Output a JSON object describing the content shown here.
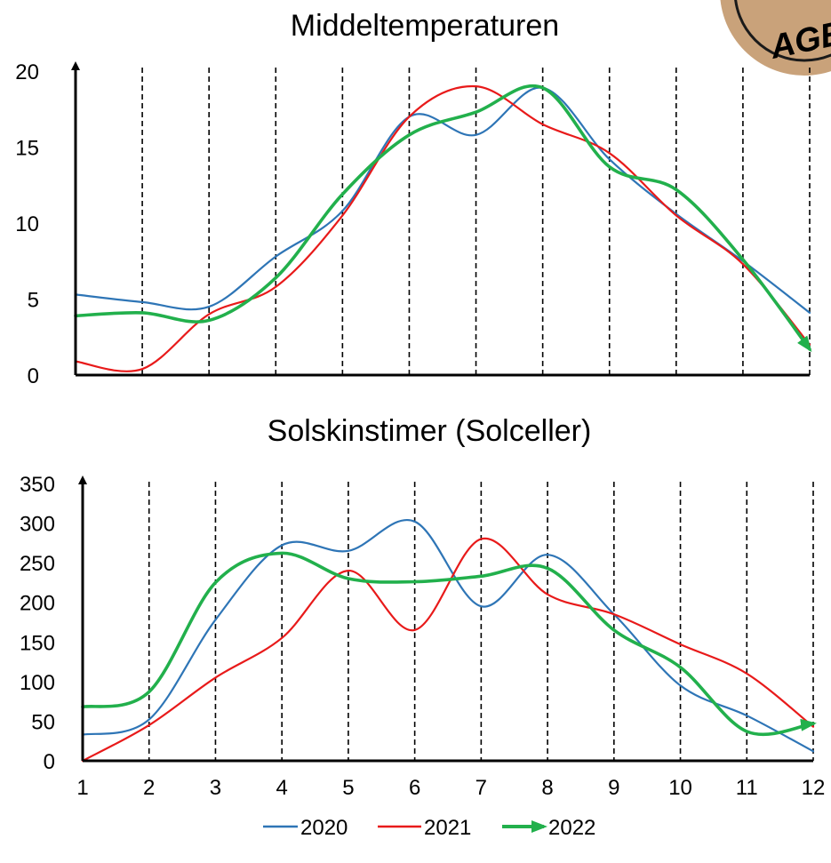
{
  "logo_fragment": {
    "text": "AGE"
  },
  "chart_data": [
    {
      "type": "line",
      "title": "Middeltemperaturen",
      "x": [
        1,
        2,
        3,
        4,
        5,
        6,
        7,
        8,
        9,
        10,
        11,
        12
      ],
      "ylim": [
        0,
        20
      ],
      "yticks": [
        "0",
        "5",
        "10",
        "15",
        "20"
      ],
      "xtick_labels_shown": false,
      "grid": "vertical dashed",
      "series": [
        {
          "name": "2020",
          "color": "#2e75b6",
          "values": [
            5.3,
            4.8,
            4.5,
            7.8,
            10.8,
            17.0,
            15.8,
            18.9,
            14.2,
            10.6,
            7.5,
            4.1
          ]
        },
        {
          "name": "2021",
          "color": "#e81a1a",
          "values": [
            0.9,
            0.4,
            4.0,
            5.8,
            10.5,
            17.0,
            19.0,
            16.5,
            14.6,
            10.5,
            7.3,
            2.0
          ]
        },
        {
          "name": "2022",
          "color": "#22b04c",
          "values": [
            3.9,
            4.1,
            3.6,
            6.4,
            11.9,
            15.8,
            17.3,
            18.9,
            13.7,
            12.2,
            7.6,
            1.7
          ]
        }
      ]
    },
    {
      "type": "line",
      "title": "Solskinstimer (Solceller)",
      "x": [
        1,
        2,
        3,
        4,
        5,
        6,
        7,
        8,
        9,
        10,
        11,
        12
      ],
      "ylim": [
        0,
        350
      ],
      "yticks": [
        "0",
        "50",
        "100",
        "150",
        "200",
        "250",
        "300",
        "350"
      ],
      "xtick_labels": [
        "1",
        "2",
        "3",
        "4",
        "5",
        "6",
        "7",
        "8",
        "9",
        "10",
        "11",
        "12"
      ],
      "grid": "vertical dashed",
      "legend_position": "bottom",
      "series": [
        {
          "name": "2020",
          "color": "#2e75b6",
          "values": [
            33,
            52,
            178,
            272,
            265,
            302,
            195,
            260,
            185,
            95,
            57,
            12
          ]
        },
        {
          "name": "2021",
          "color": "#e81a1a",
          "values": [
            0,
            45,
            105,
            155,
            240,
            165,
            280,
            210,
            185,
            147,
            110,
            43
          ]
        },
        {
          "name": "2022",
          "color": "#22b04c",
          "values": [
            68,
            87,
            225,
            262,
            230,
            226,
            233,
            243,
            165,
            118,
            37,
            47
          ]
        }
      ]
    }
  ],
  "legend": {
    "items": [
      {
        "label": "2020",
        "color": "#2e75b6"
      },
      {
        "label": "2021",
        "color": "#e81a1a"
      },
      {
        "label": "2022",
        "color": "#22b04c"
      }
    ]
  }
}
